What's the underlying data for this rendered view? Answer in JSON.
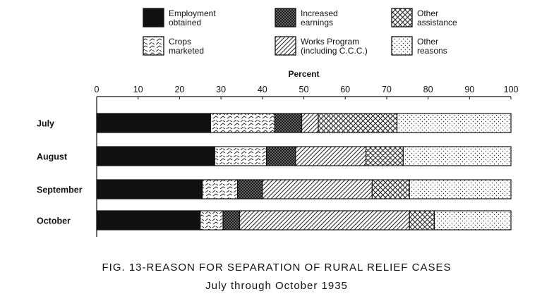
{
  "chart_data": {
    "type": "bar",
    "orientation": "horizontal",
    "stacked": true,
    "xlabel": "Percent",
    "xlim": [
      0,
      100
    ],
    "xticks": [
      "0",
      "10",
      "20",
      "30",
      "40",
      "50",
      "60",
      "70",
      "80",
      "90",
      "100"
    ],
    "categories": [
      "July",
      "August",
      "September",
      "October"
    ],
    "legend_placement": "top",
    "series": [
      {
        "name": "Employment obtained",
        "lines": [
          "Employment",
          "obtained"
        ],
        "pattern": "solid",
        "values": [
          27.5,
          28.5,
          25.5,
          25
        ]
      },
      {
        "name": "Crops marketed",
        "lines": [
          "Crops",
          "marketed"
        ],
        "pattern": "crop",
        "values": [
          15.5,
          12.5,
          8.5,
          5.5
        ]
      },
      {
        "name": "Increased earnings",
        "lines": [
          "Increased",
          "earnings"
        ],
        "pattern": "dense-cross",
        "values": [
          6.5,
          7,
          6,
          4
        ]
      },
      {
        "name": "Works Program (including C.C.C.)",
        "lines": [
          "Works Program",
          "(including C.C.C.)"
        ],
        "pattern": "diag",
        "values": [
          4,
          17,
          26.5,
          41
        ]
      },
      {
        "name": "Other assistance",
        "lines": [
          "Other",
          "assistance"
        ],
        "pattern": "crosshatch",
        "values": [
          19,
          9,
          9,
          6
        ]
      },
      {
        "name": "Other reasons",
        "lines": [
          "Other",
          "reasons"
        ],
        "pattern": "dots",
        "values": [
          27.5,
          26,
          24.5,
          18.5
        ]
      }
    ],
    "caption": [
      "FIG. 13-REASON FOR SEPARATION OF RURAL RELIEF CASES",
      "July through October 1935"
    ]
  }
}
